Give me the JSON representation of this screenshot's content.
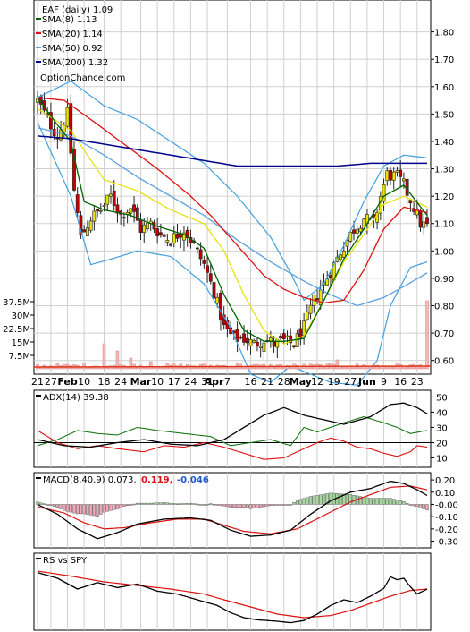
{
  "chart_data": [
    {
      "type": "candlestick",
      "ticker_label": "EAF (daily) 1.09",
      "watermark": "OptionChance.com",
      "legend_placement": "top-left",
      "ylim": [
        0.55,
        1.9
      ],
      "y_ticks": [
        "1.80",
        "1.70",
        "1.60",
        "1.50",
        "1.40",
        "1.30",
        "1.20",
        "1.10",
        "1.00",
        "0.90",
        "0.80",
        "0.70",
        "0.60"
      ],
      "legend": [
        {
          "label": "SMA(8) 1.13",
          "color": "#006400"
        },
        {
          "label": "SMA(20) 1.14",
          "color": "#dd1111"
        },
        {
          "label": "SMA(50) 0.92",
          "color": "#5aa0e0"
        },
        {
          "label": "SMA(200) 1.32",
          "color": "#00008b"
        }
      ],
      "x_labels": [
        {
          "i": 0,
          "t": "21",
          "bold": false
        },
        {
          "i": 4,
          "t": "27",
          "bold": false
        },
        {
          "i": 9,
          "t": "Feb",
          "bold": true
        },
        {
          "i": 14,
          "t": "10",
          "bold": false
        },
        {
          "i": 20,
          "t": "18",
          "bold": false
        },
        {
          "i": 25,
          "t": "24",
          "bold": false
        },
        {
          "i": 31,
          "t": "Mar",
          "bold": true
        },
        {
          "i": 36,
          "t": "10",
          "bold": false
        },
        {
          "i": 41,
          "t": "17",
          "bold": false
        },
        {
          "i": 46,
          "t": "24",
          "bold": false
        },
        {
          "i": 51,
          "t": "31",
          "bold": false
        },
        {
          "i": 53,
          "t": "Apr",
          "bold": true
        },
        {
          "i": 57,
          "t": "7",
          "bold": false
        },
        {
          "i": 64,
          "t": "16",
          "bold": false
        },
        {
          "i": 69,
          "t": "21",
          "bold": false
        },
        {
          "i": 74,
          "t": "28",
          "bold": false
        },
        {
          "i": 79,
          "t": "May",
          "bold": true
        },
        {
          "i": 84,
          "t": "12",
          "bold": false
        },
        {
          "i": 89,
          "t": "19",
          "bold": false
        },
        {
          "i": 94,
          "t": "27",
          "bold": false
        },
        {
          "i": 99,
          "t": "Jun",
          "bold": true
        },
        {
          "i": 104,
          "t": "9",
          "bold": false
        },
        {
          "i": 109,
          "t": "16",
          "bold": false
        },
        {
          "i": 114,
          "t": "23",
          "bold": false
        }
      ],
      "close_anchors": [
        [
          0,
          1.55
        ],
        [
          3,
          1.48
        ],
        [
          6,
          1.42
        ],
        [
          9,
          1.5
        ],
        [
          11,
          1.22
        ],
        [
          13,
          1.05
        ],
        [
          16,
          1.12
        ],
        [
          19,
          1.15
        ],
        [
          22,
          1.2
        ],
        [
          25,
          1.13
        ],
        [
          28,
          1.16
        ],
        [
          31,
          1.08
        ],
        [
          34,
          1.1
        ],
        [
          37,
          1.06
        ],
        [
          40,
          1.04
        ],
        [
          44,
          1.08
        ],
        [
          47,
          1.02
        ],
        [
          50,
          0.95
        ],
        [
          53,
          0.85
        ],
        [
          56,
          0.72
        ],
        [
          59,
          0.68
        ],
        [
          62,
          0.68
        ],
        [
          65,
          0.66
        ],
        [
          68,
          0.68
        ],
        [
          71,
          0.66
        ],
        [
          74,
          0.67
        ],
        [
          77,
          0.66
        ],
        [
          80,
          0.72
        ],
        [
          83,
          0.82
        ],
        [
          86,
          0.88
        ],
        [
          89,
          0.95
        ],
        [
          92,
          1.02
        ],
        [
          95,
          1.08
        ],
        [
          98,
          1.12
        ],
        [
          101,
          1.1
        ],
        [
          103,
          1.2
        ],
        [
          105,
          1.28
        ],
        [
          108,
          1.27
        ],
        [
          110,
          1.24
        ],
        [
          113,
          1.16
        ],
        [
          115,
          1.1
        ],
        [
          117,
          1.09
        ]
      ],
      "sma8_anchors": [
        [
          0,
          1.56
        ],
        [
          6,
          1.46
        ],
        [
          10,
          1.4
        ],
        [
          14,
          1.18
        ],
        [
          20,
          1.15
        ],
        [
          28,
          1.13
        ],
        [
          36,
          1.09
        ],
        [
          44,
          1.06
        ],
        [
          50,
          1.01
        ],
        [
          56,
          0.84
        ],
        [
          62,
          0.71
        ],
        [
          68,
          0.67
        ],
        [
          74,
          0.67
        ],
        [
          80,
          0.68
        ],
        [
          86,
          0.82
        ],
        [
          92,
          0.97
        ],
        [
          98,
          1.08
        ],
        [
          104,
          1.2
        ],
        [
          110,
          1.24
        ],
        [
          117,
          1.13
        ]
      ],
      "sma20_anchors": [
        [
          0,
          1.56
        ],
        [
          8,
          1.55
        ],
        [
          16,
          1.48
        ],
        [
          26,
          1.39
        ],
        [
          36,
          1.3
        ],
        [
          46,
          1.2
        ],
        [
          52,
          1.13
        ],
        [
          60,
          1.02
        ],
        [
          68,
          0.91
        ],
        [
          74,
          0.86
        ],
        [
          80,
          0.83
        ],
        [
          86,
          0.81
        ],
        [
          92,
          0.82
        ],
        [
          98,
          0.93
        ],
        [
          104,
          1.08
        ],
        [
          110,
          1.16
        ],
        [
          117,
          1.14
        ]
      ],
      "sma50_anchors": [
        [
          0,
          1.45
        ],
        [
          10,
          1.42
        ],
        [
          20,
          1.35
        ],
        [
          30,
          1.27
        ],
        [
          40,
          1.2
        ],
        [
          50,
          1.13
        ],
        [
          60,
          1.04
        ],
        [
          70,
          0.96
        ],
        [
          80,
          0.89
        ],
        [
          88,
          0.84
        ],
        [
          96,
          0.8
        ],
        [
          104,
          0.83
        ],
        [
          110,
          0.87
        ],
        [
          117,
          0.92
        ]
      ],
      "sma200_anchors": [
        [
          0,
          1.42
        ],
        [
          10,
          1.41
        ],
        [
          20,
          1.39
        ],
        [
          30,
          1.37
        ],
        [
          40,
          1.35
        ],
        [
          50,
          1.33
        ],
        [
          60,
          1.31
        ],
        [
          70,
          1.31
        ],
        [
          80,
          1.31
        ],
        [
          90,
          1.31
        ],
        [
          100,
          1.32
        ],
        [
          110,
          1.32
        ],
        [
          117,
          1.32
        ]
      ],
      "bb_upper_anchors": [
        [
          0,
          1.56
        ],
        [
          10,
          1.62
        ],
        [
          20,
          1.53
        ],
        [
          30,
          1.48
        ],
        [
          40,
          1.4
        ],
        [
          50,
          1.32
        ],
        [
          60,
          1.2
        ],
        [
          70,
          1.05
        ],
        [
          76,
          0.92
        ],
        [
          80,
          0.82
        ],
        [
          86,
          0.88
        ],
        [
          92,
          1.02
        ],
        [
          98,
          1.18
        ],
        [
          104,
          1.31
        ],
        [
          110,
          1.35
        ],
        [
          117,
          1.34
        ]
      ],
      "bb_lower_anchors": [
        [
          0,
          1.47
        ],
        [
          10,
          1.2
        ],
        [
          16,
          0.95
        ],
        [
          22,
          0.97
        ],
        [
          30,
          1.0
        ],
        [
          40,
          0.98
        ],
        [
          50,
          0.88
        ],
        [
          58,
          0.72
        ],
        [
          64,
          0.55
        ],
        [
          70,
          0.52
        ],
        [
          76,
          0.58
        ],
        [
          82,
          0.55
        ],
        [
          88,
          0.52
        ],
        [
          96,
          0.51
        ],
        [
          102,
          0.6
        ],
        [
          106,
          0.8
        ],
        [
          112,
          0.94
        ],
        [
          117,
          0.96
        ]
      ],
      "bb_mid_anchors": [
        [
          0,
          1.52
        ],
        [
          10,
          1.44
        ],
        [
          20,
          1.26
        ],
        [
          30,
          1.22
        ],
        [
          40,
          1.15
        ],
        [
          50,
          1.1
        ],
        [
          56,
          1.0
        ],
        [
          62,
          0.84
        ],
        [
          68,
          0.71
        ],
        [
          74,
          0.66
        ],
        [
          80,
          0.69
        ],
        [
          86,
          0.82
        ],
        [
          92,
          0.96
        ],
        [
          98,
          1.06
        ],
        [
          104,
          1.17
        ],
        [
          110,
          1.2
        ],
        [
          117,
          1.16
        ]
      ]
    },
    {
      "type": "bar",
      "name": "volume",
      "y_ticks": [
        "37.5M",
        "30M",
        "22.5M",
        "15M",
        "7.5M"
      ],
      "ylim": [
        0,
        45
      ],
      "spikes": [
        [
          20,
          14
        ],
        [
          24,
          10
        ],
        [
          28,
          6
        ],
        [
          34,
          4
        ],
        [
          60,
          3
        ],
        [
          90,
          5
        ],
        [
          117,
          38
        ]
      ],
      "baseline_volume": 1.8
    },
    {
      "type": "line",
      "label": "ADX(14) 39.38",
      "y_ticks": [
        "50",
        "40",
        "30",
        "20",
        "10"
      ],
      "ylim": [
        5,
        52
      ],
      "adx_anchors": [
        [
          0,
          22
        ],
        [
          8,
          18
        ],
        [
          16,
          17
        ],
        [
          24,
          20
        ],
        [
          32,
          22
        ],
        [
          40,
          19
        ],
        [
          48,
          18
        ],
        [
          56,
          22
        ],
        [
          62,
          30
        ],
        [
          68,
          38
        ],
        [
          74,
          43
        ],
        [
          80,
          38
        ],
        [
          86,
          35
        ],
        [
          92,
          32
        ],
        [
          100,
          37
        ],
        [
          106,
          45
        ],
        [
          110,
          46
        ],
        [
          114,
          43
        ],
        [
          117,
          39
        ]
      ],
      "plus_di_anchors": [
        [
          0,
          18
        ],
        [
          6,
          22
        ],
        [
          12,
          28
        ],
        [
          18,
          26
        ],
        [
          24,
          25
        ],
        [
          30,
          30
        ],
        [
          36,
          28
        ],
        [
          44,
          26
        ],
        [
          52,
          24
        ],
        [
          58,
          18
        ],
        [
          64,
          20
        ],
        [
          70,
          22
        ],
        [
          76,
          18
        ],
        [
          80,
          30
        ],
        [
          84,
          27
        ],
        [
          88,
          30
        ],
        [
          92,
          33
        ],
        [
          98,
          37
        ],
        [
          104,
          33
        ],
        [
          108,
          30
        ],
        [
          112,
          26
        ],
        [
          117,
          28
        ]
      ],
      "minus_di_anchors": [
        [
          0,
          28
        ],
        [
          6,
          20
        ],
        [
          12,
          16
        ],
        [
          18,
          18
        ],
        [
          24,
          16
        ],
        [
          32,
          14
        ],
        [
          38,
          18
        ],
        [
          44,
          17
        ],
        [
          50,
          20
        ],
        [
          56,
          17
        ],
        [
          62,
          13
        ],
        [
          68,
          9
        ],
        [
          74,
          10
        ],
        [
          80,
          16
        ],
        [
          84,
          20
        ],
        [
          88,
          23
        ],
        [
          92,
          21
        ],
        [
          96,
          17
        ],
        [
          100,
          16
        ],
        [
          104,
          13
        ],
        [
          108,
          11
        ],
        [
          112,
          14
        ],
        [
          114,
          18
        ],
        [
          117,
          17
        ]
      ],
      "threshold": 20
    },
    {
      "type": "line",
      "label_main": "MACD(8,40,9) 0.073,",
      "label_signal": "0.119,",
      "label_hist": "-0.046",
      "y_ticks": [
        "0.20",
        "0.10",
        "-0.00",
        "-0.10",
        "-0.20",
        "-0.30"
      ],
      "ylim": [
        -0.34,
        0.23
      ],
      "macd_anchors": [
        [
          0,
          0.0
        ],
        [
          6,
          -0.08
        ],
        [
          12,
          -0.2
        ],
        [
          18,
          -0.28
        ],
        [
          24,
          -0.23
        ],
        [
          30,
          -0.16
        ],
        [
          38,
          -0.12
        ],
        [
          46,
          -0.11
        ],
        [
          52,
          -0.13
        ],
        [
          58,
          -0.21
        ],
        [
          64,
          -0.26
        ],
        [
          70,
          -0.25
        ],
        [
          76,
          -0.21
        ],
        [
          82,
          -0.08
        ],
        [
          88,
          0.03
        ],
        [
          94,
          0.1
        ],
        [
          100,
          0.13
        ],
        [
          106,
          0.19
        ],
        [
          110,
          0.17
        ],
        [
          114,
          0.12
        ],
        [
          117,
          0.073
        ]
      ],
      "signal_anchors": [
        [
          0,
          -0.02
        ],
        [
          8,
          -0.07
        ],
        [
          14,
          -0.15
        ],
        [
          20,
          -0.2
        ],
        [
          26,
          -0.19
        ],
        [
          34,
          -0.15
        ],
        [
          42,
          -0.12
        ],
        [
          50,
          -0.12
        ],
        [
          56,
          -0.17
        ],
        [
          62,
          -0.22
        ],
        [
          70,
          -0.24
        ],
        [
          78,
          -0.2
        ],
        [
          86,
          -0.09
        ],
        [
          94,
          0.02
        ],
        [
          100,
          0.08
        ],
        [
          106,
          0.14
        ],
        [
          112,
          0.15
        ],
        [
          117,
          0.119
        ]
      ]
    },
    {
      "type": "line",
      "label": "RS vs SPY",
      "ylim": [
        0,
        100
      ],
      "rs_anchors": [
        [
          0,
          78
        ],
        [
          6,
          70
        ],
        [
          12,
          55
        ],
        [
          18,
          64
        ],
        [
          24,
          57
        ],
        [
          30,
          62
        ],
        [
          36,
          52
        ],
        [
          42,
          48
        ],
        [
          48,
          40
        ],
        [
          54,
          32
        ],
        [
          58,
          22
        ],
        [
          62,
          15
        ],
        [
          66,
          12
        ],
        [
          72,
          10
        ],
        [
          76,
          8
        ],
        [
          80,
          11
        ],
        [
          84,
          20
        ],
        [
          88,
          32
        ],
        [
          92,
          40
        ],
        [
          96,
          36
        ],
        [
          100,
          45
        ],
        [
          104,
          56
        ],
        [
          106,
          72
        ],
        [
          108,
          68
        ],
        [
          110,
          70
        ],
        [
          112,
          58
        ],
        [
          114,
          48
        ],
        [
          117,
          55
        ]
      ],
      "rs_ma_anchors": [
        [
          0,
          80
        ],
        [
          10,
          73
        ],
        [
          20,
          65
        ],
        [
          30,
          60
        ],
        [
          40,
          55
        ],
        [
          50,
          48
        ],
        [
          56,
          40
        ],
        [
          64,
          30
        ],
        [
          72,
          20
        ],
        [
          80,
          15
        ],
        [
          88,
          18
        ],
        [
          94,
          25
        ],
        [
          100,
          35
        ],
        [
          106,
          45
        ],
        [
          112,
          53
        ],
        [
          117,
          55
        ]
      ]
    }
  ]
}
